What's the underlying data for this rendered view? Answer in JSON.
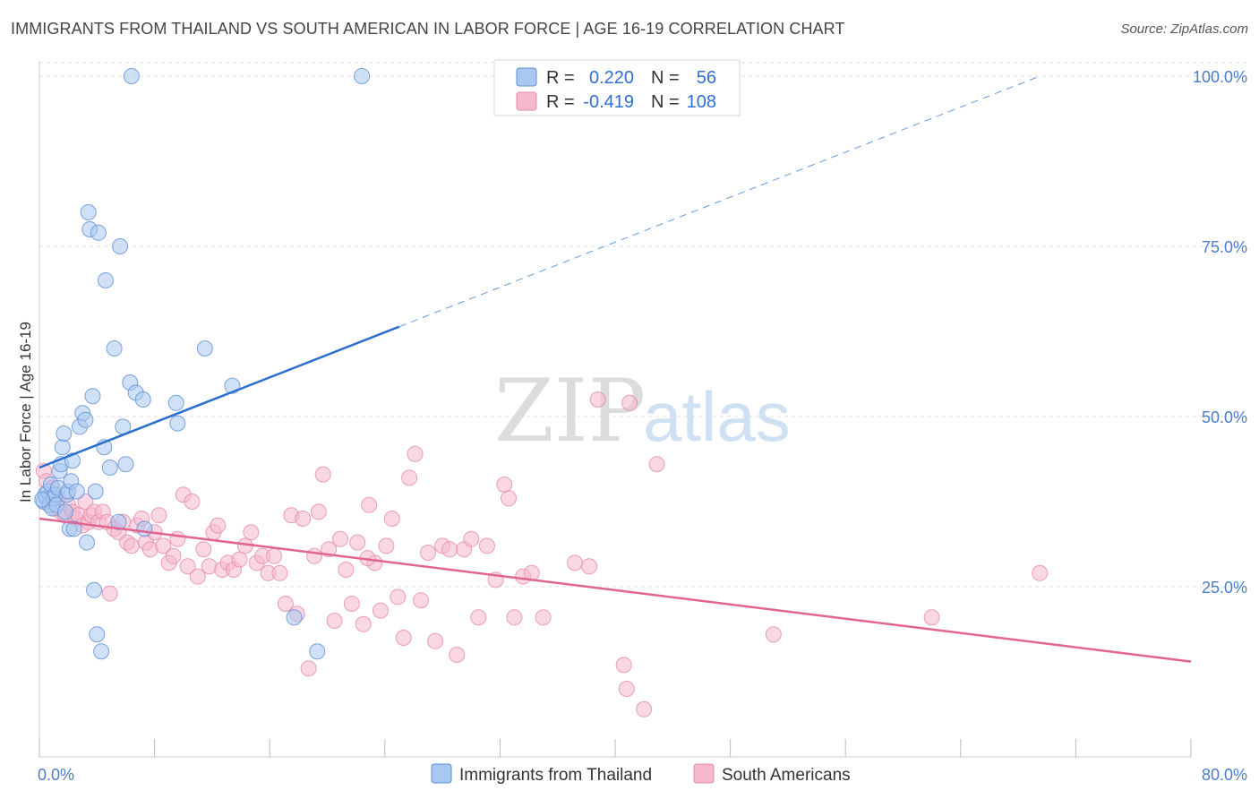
{
  "title": "IMMIGRANTS FROM THAILAND VS SOUTH AMERICAN IN LABOR FORCE | AGE 16-19 CORRELATION CHART",
  "source": "Source: ZipAtlas.com",
  "watermark": {
    "zip": "ZIP",
    "atlas": "atlas"
  },
  "colors": {
    "thailand_fill": "#a9c8f0",
    "thailand_stroke": "#5b8fd8",
    "thailand_line": "#2a6fcf",
    "south_fill": "#f6b8cc",
    "south_stroke": "#e58aa8",
    "south_line": "#e0658f",
    "tick_text": "#4a7cc9",
    "grid": "#dddddd"
  },
  "stats": {
    "r_label": "R =",
    "n_label": "N =",
    "rows": [
      {
        "r": "0.220",
        "n": "56"
      },
      {
        "r": "-0.419",
        "n": "108"
      }
    ]
  },
  "chart_data": {
    "type": "scatter",
    "title": "IMMIGRANTS FROM THAILAND VS SOUTH AMERICAN IN LABOR FORCE | AGE 16-19 CORRELATION CHART",
    "xlabel": "",
    "ylabel": "In Labor Force | Age 16-19",
    "xlim": [
      0,
      80
    ],
    "ylim": [
      0,
      105
    ],
    "x_tick_labels": [
      "0.0%",
      "80.0%"
    ],
    "y_ticks": [
      25,
      50,
      75,
      100
    ],
    "y_tick_labels": [
      "25.0%",
      "50.0%",
      "75.0%",
      "100.0%"
    ],
    "grid": "horizontal dashed",
    "legend_position": "bottom-center",
    "series": [
      {
        "name": "Immigrants from Thailand",
        "trend": {
          "x0": 0,
          "y0": 42.5,
          "x1": 25,
          "y1": 63.2,
          "dashed_to_x": 69.5,
          "dashed_to_y": 100
        },
        "points": [
          [
            0.3,
            37.5
          ],
          [
            0.4,
            38.5
          ],
          [
            0.5,
            38
          ],
          [
            0.6,
            39
          ],
          [
            0.7,
            37
          ],
          [
            0.8,
            40
          ],
          [
            0.9,
            36.5
          ],
          [
            1.0,
            38
          ],
          [
            1.1,
            38.5
          ],
          [
            1.2,
            37
          ],
          [
            1.3,
            39.5
          ],
          [
            1.4,
            42
          ],
          [
            1.5,
            43
          ],
          [
            1.6,
            45.5
          ],
          [
            1.7,
            47.5
          ],
          [
            1.8,
            36
          ],
          [
            1.9,
            38.5
          ],
          [
            2.0,
            39
          ],
          [
            2.1,
            33.5
          ],
          [
            2.2,
            40.5
          ],
          [
            2.3,
            43.5
          ],
          [
            2.4,
            33.5
          ],
          [
            2.6,
            39
          ],
          [
            2.8,
            48.5
          ],
          [
            3.0,
            50.5
          ],
          [
            3.2,
            49.5
          ],
          [
            3.3,
            31.5
          ],
          [
            3.4,
            80
          ],
          [
            3.5,
            77.5
          ],
          [
            3.7,
            53
          ],
          [
            3.8,
            24.5
          ],
          [
            3.9,
            39
          ],
          [
            4.0,
            18
          ],
          [
            4.1,
            77
          ],
          [
            4.3,
            15.5
          ],
          [
            4.5,
            45.5
          ],
          [
            4.6,
            70
          ],
          [
            4.9,
            42.5
          ],
          [
            5.2,
            60
          ],
          [
            5.5,
            34.5
          ],
          [
            5.6,
            75
          ],
          [
            5.8,
            48.5
          ],
          [
            6.0,
            43
          ],
          [
            6.3,
            55
          ],
          [
            6.4,
            100
          ],
          [
            6.7,
            53.5
          ],
          [
            7.2,
            52.5
          ],
          [
            7.3,
            33.5
          ],
          [
            9.5,
            52
          ],
          [
            9.6,
            49
          ],
          [
            11.5,
            60
          ],
          [
            13.4,
            54.5
          ],
          [
            17.7,
            20.5
          ],
          [
            19.3,
            15.5
          ],
          [
            22.4,
            100
          ],
          [
            0.2,
            37.8
          ]
        ]
      },
      {
        "name": "South Americans",
        "trend": {
          "x0": 0,
          "y0": 35,
          "x1": 80,
          "y1": 14
        },
        "points": [
          [
            0.3,
            42
          ],
          [
            0.5,
            40.5
          ],
          [
            0.7,
            38
          ],
          [
            0.9,
            39.5
          ],
          [
            1.1,
            36.5
          ],
          [
            1.3,
            38
          ],
          [
            1.5,
            36
          ],
          [
            1.8,
            35.5
          ],
          [
            2.0,
            37
          ],
          [
            2.3,
            36
          ],
          [
            2.5,
            35
          ],
          [
            2.7,
            35.5
          ],
          [
            3.0,
            34
          ],
          [
            3.2,
            37.5
          ],
          [
            3.4,
            34.5
          ],
          [
            3.6,
            35.5
          ],
          [
            3.8,
            36
          ],
          [
            4.1,
            34.5
          ],
          [
            4.4,
            36
          ],
          [
            4.7,
            34.5
          ],
          [
            4.9,
            24
          ],
          [
            5.2,
            33.5
          ],
          [
            5.5,
            33
          ],
          [
            5.8,
            34.5
          ],
          [
            6.1,
            31.5
          ],
          [
            6.4,
            31
          ],
          [
            6.8,
            34
          ],
          [
            7.1,
            35
          ],
          [
            7.4,
            31.5
          ],
          [
            7.7,
            30.5
          ],
          [
            8.0,
            33
          ],
          [
            8.3,
            35.5
          ],
          [
            8.6,
            31
          ],
          [
            9.0,
            28.5
          ],
          [
            9.3,
            29.5
          ],
          [
            9.6,
            32
          ],
          [
            10.0,
            38.5
          ],
          [
            10.3,
            28
          ],
          [
            10.6,
            37.5
          ],
          [
            11.0,
            26.5
          ],
          [
            11.4,
            30.5
          ],
          [
            11.8,
            28
          ],
          [
            12.1,
            33
          ],
          [
            12.4,
            34
          ],
          [
            12.7,
            27.5
          ],
          [
            13.1,
            28.5
          ],
          [
            13.5,
            27.5
          ],
          [
            13.9,
            29
          ],
          [
            14.3,
            31
          ],
          [
            14.7,
            33
          ],
          [
            15.1,
            28.5
          ],
          [
            15.5,
            29.5
          ],
          [
            15.9,
            27
          ],
          [
            16.3,
            29.5
          ],
          [
            16.7,
            27
          ],
          [
            17.1,
            22.5
          ],
          [
            17.5,
            35.5
          ],
          [
            17.9,
            21
          ],
          [
            18.3,
            35
          ],
          [
            18.7,
            13
          ],
          [
            19.1,
            29.5
          ],
          [
            19.4,
            36
          ],
          [
            19.7,
            41.5
          ],
          [
            20.1,
            30.5
          ],
          [
            20.5,
            20
          ],
          [
            20.9,
            32
          ],
          [
            21.3,
            27.5
          ],
          [
            21.7,
            22.5
          ],
          [
            22.1,
            31.5
          ],
          [
            22.5,
            19.5
          ],
          [
            22.9,
            37
          ],
          [
            23.3,
            28.5
          ],
          [
            23.7,
            21.5
          ],
          [
            24.1,
            31
          ],
          [
            24.5,
            35
          ],
          [
            24.9,
            23.5
          ],
          [
            25.3,
            17.5
          ],
          [
            25.7,
            41
          ],
          [
            26.1,
            44.5
          ],
          [
            26.5,
            23
          ],
          [
            27.0,
            30
          ],
          [
            27.5,
            17
          ],
          [
            28.0,
            31
          ],
          [
            28.5,
            30.5
          ],
          [
            29.0,
            15
          ],
          [
            29.5,
            30.5
          ],
          [
            30.0,
            32
          ],
          [
            30.5,
            20.5
          ],
          [
            31.1,
            31
          ],
          [
            31.7,
            26
          ],
          [
            32.3,
            40
          ],
          [
            32.6,
            38
          ],
          [
            33.0,
            20.5
          ],
          [
            33.6,
            26.5
          ],
          [
            34.2,
            27
          ],
          [
            35.0,
            20.5
          ],
          [
            37.2,
            28.5
          ],
          [
            38.2,
            28
          ],
          [
            38.8,
            52.5
          ],
          [
            40.6,
            13.5
          ],
          [
            40.8,
            10
          ],
          [
            41.0,
            52
          ],
          [
            42.0,
            7
          ],
          [
            42.9,
            43
          ],
          [
            51.0,
            18
          ],
          [
            62.0,
            20.5
          ],
          [
            69.5,
            27
          ],
          [
            22.8,
            29.2
          ]
        ]
      }
    ]
  },
  "legend": {
    "items": [
      "Immigrants from Thailand",
      "South Americans"
    ]
  }
}
